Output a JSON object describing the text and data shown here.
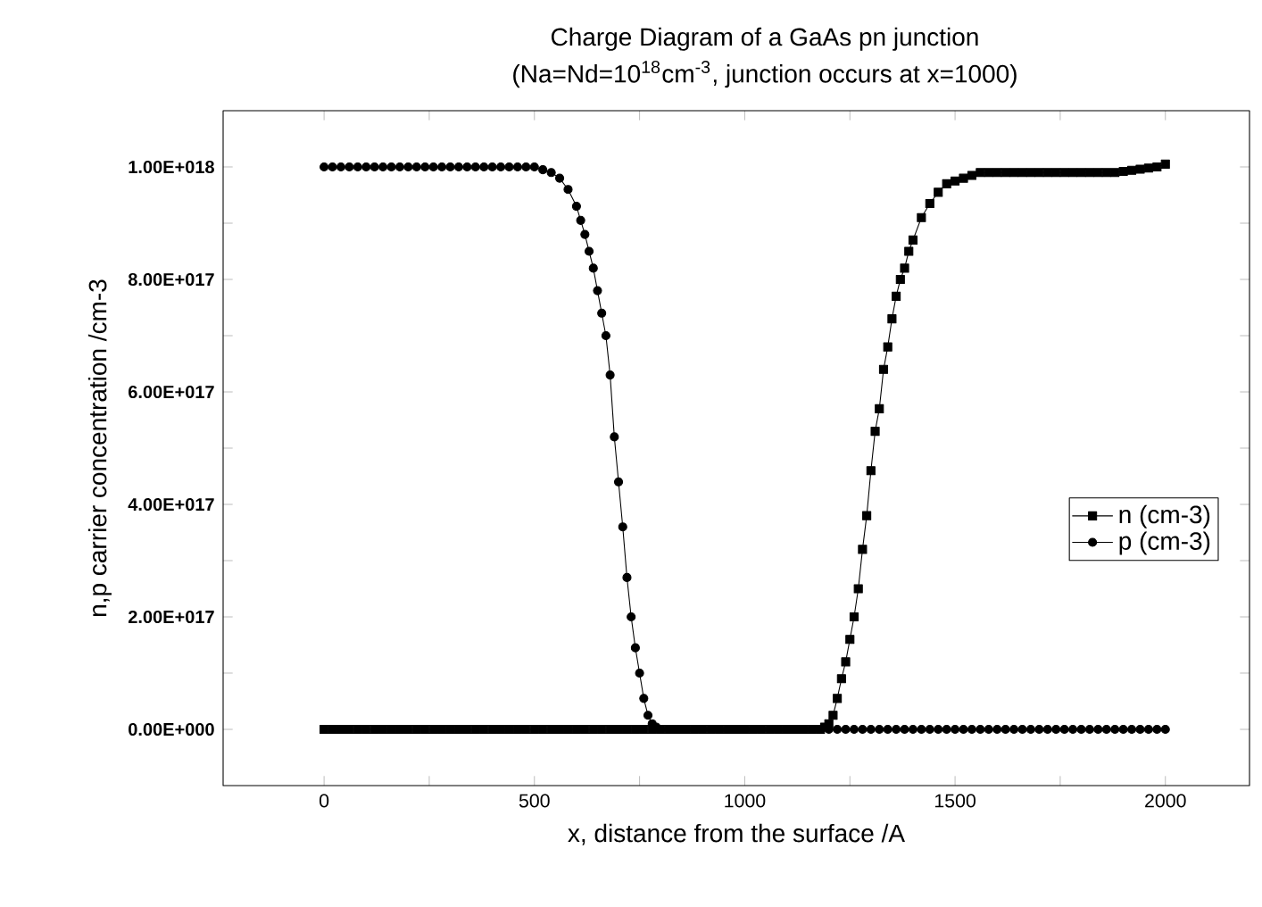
{
  "chart_data": {
    "type": "line",
    "title": "Charge Diagram of a GaAs pn junction",
    "subtitle": "(Na=Nd=10$^{18}$cm$^{-3}$, junction occurs at x=1000)",
    "xlabel": "x, distance from the surface /A",
    "ylabel": "n,p carrier concentration /cm-3",
    "xlim": [
      -240,
      2200
    ],
    "ylim": [
      -1e+17,
      1.1e+18
    ],
    "xticks": [
      0,
      {
        "value": 250,
        "label": null
      },
      500,
      {
        "value": 750,
        "label": null
      },
      1000,
      {
        "value": 1250,
        "label": null
      },
      1500,
      {
        "value": 1750,
        "label": null
      },
      2000
    ],
    "yticks": [
      {
        "value": 0,
        "label": "0.00E+000"
      },
      {
        "value": 1e+17,
        "label": null
      },
      {
        "value": 2e+17,
        "label": "2.00E+017"
      },
      {
        "value": 3e+17,
        "label": null
      },
      {
        "value": 4e+17,
        "label": "4.00E+017"
      },
      {
        "value": 5e+17,
        "label": null
      },
      {
        "value": 6e+17,
        "label": "6.00E+017"
      },
      {
        "value": 7e+17,
        "label": null
      },
      {
        "value": 8e+17,
        "label": "8.00E+017"
      },
      {
        "value": 9e+17,
        "label": null
      },
      {
        "value": 1e+18,
        "label": "1.00E+018"
      }
    ],
    "legend": "right",
    "line_style": "solid",
    "series": [
      {
        "name": "n (cm-3)",
        "color": "#000000",
        "marker": "square",
        "x": [
          0,
          20,
          40,
          60,
          80,
          100,
          120,
          140,
          160,
          180,
          200,
          220,
          240,
          260,
          280,
          300,
          320,
          340,
          360,
          380,
          400,
          420,
          440,
          460,
          480,
          500,
          520,
          540,
          560,
          580,
          600,
          620,
          640,
          660,
          680,
          700,
          720,
          740,
          760,
          780,
          800,
          820,
          840,
          860,
          880,
          900,
          920,
          940,
          960,
          980,
          1000,
          1020,
          1040,
          1060,
          1080,
          1100,
          1120,
          1140,
          1160,
          1180,
          1190,
          1200,
          1210,
          1220,
          1230,
          1240,
          1250,
          1260,
          1270,
          1280,
          1290,
          1300,
          1310,
          1320,
          1330,
          1340,
          1350,
          1360,
          1370,
          1380,
          1390,
          1400,
          1420,
          1440,
          1460,
          1480,
          1500,
          1520,
          1540,
          1560,
          1580,
          1600,
          1620,
          1640,
          1660,
          1680,
          1700,
          1720,
          1740,
          1760,
          1780,
          1800,
          1820,
          1840,
          1860,
          1880,
          1900,
          1920,
          1940,
          1960,
          1980,
          2000
        ],
        "values": [
          0,
          0,
          0,
          0,
          0,
          0,
          0,
          0,
          0,
          0,
          0,
          0,
          0,
          0,
          0,
          0,
          0,
          0,
          0,
          0,
          0,
          0,
          0,
          0,
          0,
          0,
          0,
          0,
          0,
          0,
          0,
          0,
          0,
          0,
          0,
          0,
          0,
          0,
          0,
          0,
          0,
          0,
          0,
          0,
          0,
          0,
          0,
          0,
          0,
          0,
          0,
          0,
          0,
          0,
          0,
          0,
          0,
          0,
          0,
          0,
          4000000000000000.0,
          1e+16,
          2.5e+16,
          5.5e+16,
          9e+16,
          1.2e+17,
          1.6e+17,
          2e+17,
          2.5e+17,
          3.2e+17,
          3.8e+17,
          4.6e+17,
          5.3e+17,
          5.7e+17,
          6.4e+17,
          6.8e+17,
          7.3e+17,
          7.7e+17,
          8e+17,
          8.2e+17,
          8.5e+17,
          8.7e+17,
          9.1e+17,
          9.35e+17,
          9.55e+17,
          9.7e+17,
          9.75e+17,
          9.8e+17,
          9.85e+17,
          9.9e+17,
          9.9e+17,
          9.9e+17,
          9.9e+17,
          9.9e+17,
          9.9e+17,
          9.9e+17,
          9.9e+17,
          9.9e+17,
          9.9e+17,
          9.9e+17,
          9.9e+17,
          9.9e+17,
          9.9e+17,
          9.9e+17,
          9.9e+17,
          9.9e+17,
          9.92e+17,
          9.94e+17,
          9.96e+17,
          9.98e+17,
          1e+18,
          1.005e+18
        ]
      },
      {
        "name": "p (cm-3)",
        "color": "#000000",
        "marker": "circle",
        "x": [
          0,
          20,
          40,
          60,
          80,
          100,
          120,
          140,
          160,
          180,
          200,
          220,
          240,
          260,
          280,
          300,
          320,
          340,
          360,
          380,
          400,
          420,
          440,
          460,
          480,
          500,
          520,
          540,
          560,
          580,
          600,
          610,
          620,
          630,
          640,
          650,
          660,
          670,
          680,
          690,
          700,
          710,
          720,
          730,
          740,
          750,
          760,
          770,
          780,
          790,
          800,
          820,
          840,
          860,
          880,
          900,
          920,
          940,
          960,
          980,
          1000,
          1020,
          1040,
          1060,
          1080,
          1100,
          1120,
          1140,
          1160,
          1180,
          1200,
          1220,
          1240,
          1260,
          1280,
          1300,
          1320,
          1340,
          1360,
          1380,
          1400,
          1420,
          1440,
          1460,
          1480,
          1500,
          1520,
          1540,
          1560,
          1580,
          1600,
          1620,
          1640,
          1660,
          1680,
          1700,
          1720,
          1740,
          1760,
          1780,
          1800,
          1820,
          1840,
          1860,
          1880,
          1900,
          1920,
          1940,
          1960,
          1980,
          2000
        ],
        "values": [
          1e+18,
          1e+18,
          1e+18,
          1e+18,
          1e+18,
          1e+18,
          1e+18,
          1e+18,
          1e+18,
          1e+18,
          1e+18,
          1e+18,
          1e+18,
          1e+18,
          1e+18,
          1e+18,
          1e+18,
          1e+18,
          1e+18,
          1e+18,
          1e+18,
          1e+18,
          1e+18,
          1e+18,
          1e+18,
          1e+18,
          9.95e+17,
          9.9e+17,
          9.8e+17,
          9.6e+17,
          9.3e+17,
          9.05e+17,
          8.8e+17,
          8.5e+17,
          8.2e+17,
          7.8e+17,
          7.4e+17,
          7e+17,
          6.3e+17,
          5.2e+17,
          4.4e+17,
          3.6e+17,
          2.7e+17,
          2e+17,
          1.45e+17,
          1e+17,
          5.5e+16,
          2.5e+16,
          1e+16,
          4000000000000000.0,
          0,
          0,
          0,
          0,
          0,
          0,
          0,
          0,
          0,
          0,
          0,
          0,
          0,
          0,
          0,
          0,
          0,
          0,
          0,
          0,
          0,
          0,
          0,
          0,
          0,
          0,
          0,
          0,
          0,
          0,
          0,
          0,
          0,
          0,
          0,
          0,
          0,
          0,
          0,
          0,
          0,
          0,
          0,
          0,
          0,
          0,
          0,
          0,
          0,
          0,
          0,
          0,
          0,
          0,
          0,
          0,
          0,
          0,
          0,
          0,
          0
        ]
      }
    ]
  }
}
